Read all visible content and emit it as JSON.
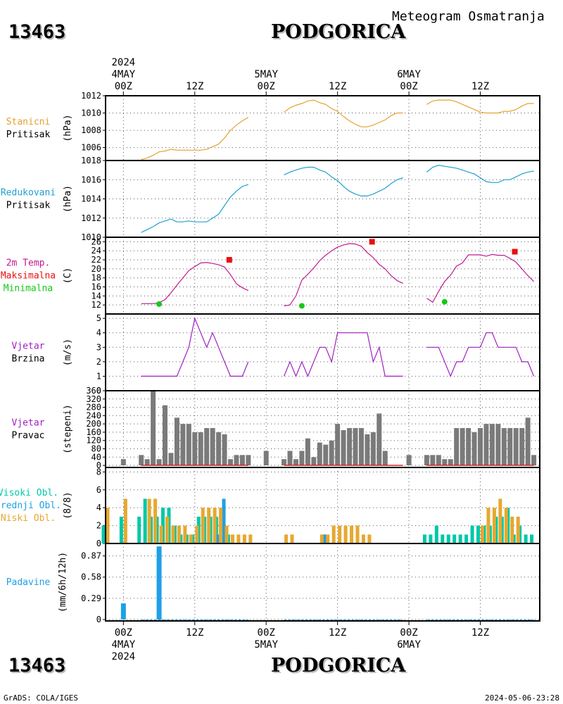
{
  "header": {
    "station_id": "13463",
    "city": "PODGORICA",
    "title": "Meteogram Osmatranja"
  },
  "footer": {
    "left": "GrADS: COLA/IGES",
    "right": "2024-05-06-23:28"
  },
  "time_axis": {
    "top_year": "2024",
    "bottom_year": "2024",
    "ticks": [
      {
        "hour": 0,
        "label": "00Z",
        "date": "4MAY"
      },
      {
        "hour": 12,
        "label": "12Z",
        "date": ""
      },
      {
        "hour": 24,
        "label": "00Z",
        "date": "5MAY"
      },
      {
        "hour": 36,
        "label": "12Z",
        "date": ""
      },
      {
        "hour": 48,
        "label": "00Z",
        "date": "6MAY"
      },
      {
        "hour": 60,
        "label": "12Z",
        "date": ""
      }
    ],
    "range_hours": [
      -3,
      70
    ]
  },
  "colors": {
    "pressure_station": "#e6a030",
    "pressure_reduced": "#20a0d0",
    "temperature": "#c01890",
    "maximum": "#e81010",
    "minimum": "#18c818",
    "wind_speed": "#a020c0",
    "wind_direction": "#7a7a7a",
    "high_cloud": "#00c8a8",
    "mid_cloud": "#1ea0e6",
    "low_cloud": "#e6a830",
    "precip": "#1ea0e6",
    "title_orange": "#e6a030",
    "title_cyan": "#20a0d0",
    "title_magenta": "#c01890",
    "title_purple": "#a020c0"
  },
  "chart_data": [
    {
      "type": "line",
      "panel": "station_pressure",
      "labels": [
        "Stanicni",
        "Pritisak"
      ],
      "ylabel": "(hPa)",
      "ylim": [
        1004.5,
        1012
      ],
      "yticks": [
        1006,
        1008,
        1010,
        1012
      ],
      "segments": [
        {
          "x": [
            3,
            4,
            5,
            6,
            7,
            8,
            9,
            10,
            11,
            12,
            13,
            14,
            15,
            16,
            17,
            18,
            19,
            20,
            21
          ],
          "y": [
            1004.6,
            1004.8,
            1005.1,
            1005.5,
            1005.6,
            1005.8,
            1005.7,
            1005.7,
            1005.7,
            1005.7,
            1005.7,
            1005.8,
            1006.1,
            1006.4,
            1007.1,
            1008.0,
            1008.6,
            1009.1,
            1009.5
          ]
        },
        {
          "x": [
            27,
            28,
            29,
            30,
            31,
            32,
            33,
            34,
            35,
            36,
            37,
            38,
            39,
            40,
            41,
            42,
            43,
            44,
            45,
            46,
            47
          ],
          "y": [
            1010.1,
            1010.6,
            1010.9,
            1011.1,
            1011.4,
            1011.5,
            1011.2,
            1011.0,
            1010.5,
            1010.2,
            1009.6,
            1009.1,
            1008.7,
            1008.4,
            1008.4,
            1008.6,
            1008.9,
            1009.2,
            1009.7,
            1010.0,
            1010.0
          ]
        },
        {
          "x": [
            51,
            52,
            53,
            54,
            55,
            56,
            57,
            58,
            59,
            60,
            61,
            62,
            63,
            64,
            65,
            66,
            67,
            68,
            69
          ],
          "y": [
            1011.0,
            1011.4,
            1011.5,
            1011.5,
            1011.5,
            1011.3,
            1011.0,
            1010.7,
            1010.4,
            1010.1,
            1010.0,
            1010.0,
            1010.0,
            1010.2,
            1010.2,
            1010.4,
            1010.8,
            1011.1,
            1011.1
          ]
        }
      ]
    },
    {
      "type": "line",
      "panel": "reduced_pressure",
      "labels": [
        "Redukovani",
        "Pritisak"
      ],
      "ylabel": "(hPa)",
      "ylim": [
        1010,
        1018
      ],
      "yticks": [
        1010,
        1012,
        1014,
        1016,
        1018
      ],
      "segments": [
        {
          "x": [
            3,
            4,
            5,
            6,
            7,
            8,
            9,
            10,
            11,
            12,
            13,
            14,
            15,
            16,
            17,
            18,
            19,
            20,
            21
          ],
          "y": [
            1010.5,
            1010.8,
            1011.1,
            1011.5,
            1011.7,
            1011.9,
            1011.6,
            1011.6,
            1011.7,
            1011.6,
            1011.6,
            1011.6,
            1012.0,
            1012.4,
            1013.3,
            1014.2,
            1014.8,
            1015.3,
            1015.5
          ]
        },
        {
          "x": [
            27,
            28,
            29,
            30,
            31,
            32,
            33,
            34,
            35,
            36,
            37,
            38,
            39,
            40,
            41,
            42,
            43,
            44,
            45,
            46,
            47
          ],
          "y": [
            1016.5,
            1016.8,
            1017.0,
            1017.2,
            1017.3,
            1017.3,
            1017.0,
            1016.8,
            1016.3,
            1015.9,
            1015.3,
            1014.8,
            1014.5,
            1014.3,
            1014.3,
            1014.5,
            1014.8,
            1015.1,
            1015.6,
            1016.0,
            1016.2
          ]
        },
        {
          "x": [
            51,
            52,
            53,
            54,
            55,
            56,
            57,
            58,
            59,
            60,
            61,
            62,
            63,
            64,
            65,
            66,
            67,
            68,
            69
          ],
          "y": [
            1016.8,
            1017.3,
            1017.5,
            1017.4,
            1017.3,
            1017.2,
            1017.0,
            1016.8,
            1016.6,
            1016.2,
            1015.8,
            1015.7,
            1015.7,
            1016.0,
            1016.0,
            1016.3,
            1016.6,
            1016.8,
            1016.9
          ]
        }
      ]
    },
    {
      "type": "line",
      "panel": "temperature",
      "labels": [
        "2m Temp.",
        "Maksimalna",
        "Minimalna"
      ],
      "ylabel": "(C)",
      "ylim": [
        10,
        27
      ],
      "yticks": [
        12,
        14,
        16,
        18,
        20,
        22,
        24,
        26
      ],
      "segments": [
        {
          "x": [
            3,
            4,
            5,
            6,
            7,
            8,
            9,
            10,
            11,
            12,
            13,
            14,
            15,
            16,
            17,
            18,
            19,
            20,
            21
          ],
          "y": [
            12.3,
            12.3,
            12.3,
            12.5,
            13.2,
            14.7,
            16.4,
            18.0,
            19.6,
            20.5,
            21.3,
            21.4,
            21.2,
            20.9,
            20.4,
            18.7,
            16.7,
            15.8,
            15.2
          ]
        },
        {
          "x": [
            27,
            28,
            29,
            30,
            31,
            32,
            33,
            34,
            35,
            36,
            37,
            38,
            39,
            40,
            41,
            42,
            43,
            44,
            45,
            46,
            47
          ],
          "y": [
            11.8,
            12.0,
            14.0,
            17.5,
            18.8,
            20.2,
            21.8,
            23.0,
            24.0,
            24.8,
            25.3,
            25.6,
            25.5,
            25.0,
            23.6,
            22.5,
            21.0,
            20.0,
            18.5,
            17.4,
            16.8
          ]
        },
        {
          "x": [
            51,
            52,
            53,
            54,
            55,
            56,
            57,
            58,
            59,
            60,
            61,
            62,
            63,
            64,
            65,
            66,
            67,
            68,
            69
          ],
          "y": [
            13.5,
            12.6,
            15.0,
            17.2,
            18.6,
            20.6,
            21.3,
            23.1,
            23.1,
            23.1,
            22.8,
            23.2,
            23.0,
            23.0,
            22.3,
            21.5,
            20.0,
            18.5,
            17.2
          ]
        }
      ],
      "maximum": [
        {
          "x": 17.8,
          "y": 22.0
        },
        {
          "x": 41.8,
          "y": 26.0
        },
        {
          "x": 65.8,
          "y": 23.8
        }
      ],
      "minimum": [
        {
          "x": 6,
          "y": 12.2
        },
        {
          "x": 30,
          "y": 11.8
        },
        {
          "x": 54,
          "y": 12.7
        }
      ]
    },
    {
      "type": "line",
      "panel": "wind_speed",
      "labels": [
        "Vjetar",
        "Brzina"
      ],
      "ylabel": "(m/s)",
      "ylim": [
        0,
        5.3
      ],
      "yticks": [
        0,
        1,
        2,
        3,
        4,
        5
      ],
      "segments": [
        {
          "x": [
            3,
            6,
            9,
            11,
            12,
            13,
            14,
            15,
            16,
            17,
            18,
            19,
            20,
            21
          ],
          "y": [
            1,
            1,
            1,
            3,
            5,
            4,
            3,
            4,
            3,
            2,
            1,
            1,
            1,
            2
          ]
        },
        {
          "x": [
            27,
            28,
            29,
            30,
            31,
            32,
            33,
            34,
            35,
            36,
            37,
            38,
            39,
            40,
            41,
            42,
            43,
            44,
            45,
            46,
            47
          ],
          "y": [
            1,
            2,
            1,
            2,
            1,
            2,
            3,
            3,
            2,
            4,
            4,
            4,
            4,
            4,
            4,
            2,
            3,
            1,
            1,
            1,
            1
          ]
        },
        {
          "x": [
            51,
            52,
            53,
            54,
            55,
            56,
            57,
            58,
            59,
            60,
            61,
            62,
            63,
            64,
            65,
            66,
            67,
            68,
            69
          ],
          "y": [
            3,
            3,
            3,
            2,
            1,
            2,
            2,
            3,
            3,
            3,
            4,
            4,
            3,
            3,
            3,
            3,
            2,
            2,
            1
          ]
        }
      ]
    },
    {
      "type": "bar",
      "panel": "wind_direction",
      "labels": [
        "Vjetar",
        "Pravac"
      ],
      "ylabel": "(stepeni)",
      "ylim": [
        -10,
        360
      ],
      "yticks": [
        0,
        40,
        80,
        120,
        160,
        200,
        240,
        280,
        320,
        360
      ],
      "x": [
        0,
        3,
        4,
        5,
        6,
        7,
        8,
        9,
        10,
        11,
        12,
        13,
        14,
        15,
        16,
        17,
        18,
        19,
        20,
        21,
        24,
        27,
        28,
        29,
        30,
        31,
        32,
        33,
        34,
        35,
        36,
        37,
        38,
        39,
        40,
        41,
        42,
        43,
        44,
        45,
        46,
        47,
        48,
        51,
        52,
        53,
        54,
        55,
        56,
        57,
        58,
        59,
        60,
        61,
        62,
        63,
        64,
        65,
        66,
        67,
        68,
        69
      ],
      "values": [
        30,
        50,
        30,
        360,
        30,
        290,
        60,
        230,
        200,
        200,
        160,
        160,
        180,
        180,
        160,
        150,
        30,
        50,
        50,
        50,
        70,
        30,
        70,
        30,
        70,
        130,
        40,
        110,
        100,
        120,
        200,
        170,
        180,
        180,
        180,
        150,
        160,
        250,
        70,
        0,
        0,
        0,
        50,
        50,
        50,
        50,
        30,
        30,
        180,
        180,
        180,
        160,
        180,
        200,
        200,
        200,
        180,
        180,
        180,
        180,
        230,
        50
      ]
    },
    {
      "type": "bar",
      "panel": "cloud_cover",
      "labels": [
        "Visoki Obl.",
        "Srednji Obl.",
        "Niski Obl."
      ],
      "ylabel": "(8/8)",
      "ylim": [
        0,
        8.5
      ],
      "yticks": [
        0,
        2,
        4,
        6,
        8
      ],
      "x": [
        -3,
        0,
        3,
        4,
        5,
        6,
        7,
        8,
        9,
        10,
        11,
        12,
        13,
        14,
        15,
        16,
        17,
        18,
        19,
        20,
        21,
        27,
        28,
        33,
        34,
        35,
        36,
        37,
        38,
        39,
        40,
        41,
        42,
        51,
        52,
        53,
        54,
        55,
        56,
        57,
        58,
        59,
        60,
        61,
        62,
        63,
        64,
        65,
        66,
        67,
        68,
        69
      ],
      "series": [
        {
          "name": "Visoki Obl.",
          "values": [
            2,
            3,
            3,
            5,
            3,
            3,
            4,
            4,
            2,
            1,
            1,
            1,
            3,
            3,
            3,
            3,
            1,
            1,
            0,
            0,
            0,
            0,
            0,
            0,
            1,
            0,
            0,
            0,
            0,
            0,
            0,
            0,
            0,
            1,
            1,
            2,
            1,
            1,
            1,
            1,
            1,
            2,
            2,
            2,
            2,
            3,
            3,
            4,
            1,
            2,
            1,
            1
          ]
        },
        {
          "name": "Srednji Obl.",
          "values": [
            0,
            0,
            0,
            0,
            0,
            0,
            0,
            0,
            0,
            0,
            0,
            0,
            0,
            0,
            0,
            1,
            5,
            0,
            0,
            0,
            0,
            0,
            0,
            0,
            1,
            0,
            0,
            0,
            0,
            0,
            0,
            0,
            0,
            0,
            0,
            0,
            0,
            0,
            0,
            0,
            0,
            0,
            0,
            0,
            0,
            0,
            0,
            0,
            0,
            0,
            0,
            0
          ]
        },
        {
          "name": "Niski Obl.",
          "values": [
            4,
            5,
            0,
            5,
            5,
            2,
            3,
            2,
            2,
            2,
            1,
            2,
            4,
            4,
            4,
            4,
            2,
            1,
            1,
            1,
            1,
            1,
            1,
            1,
            1,
            2,
            2,
            2,
            2,
            2,
            1,
            1,
            0,
            0,
            0,
            0,
            0,
            0,
            0,
            0,
            0,
            0,
            2,
            4,
            4,
            5,
            4,
            3,
            3,
            0,
            0,
            0
          ]
        }
      ]
    },
    {
      "type": "bar",
      "panel": "precipitation",
      "labels": [
        "Padavine"
      ],
      "ylabel": "(mm/6h/12h)",
      "ylim": [
        -0.02,
        1.04
      ],
      "yticks": [
        0,
        0.29,
        0.58,
        0.87
      ],
      "ytick_labels": [
        "0",
        "0.29",
        "0.58",
        "0.87"
      ],
      "x": [
        0,
        6
      ],
      "values": [
        0.22,
        1.0
      ]
    }
  ]
}
